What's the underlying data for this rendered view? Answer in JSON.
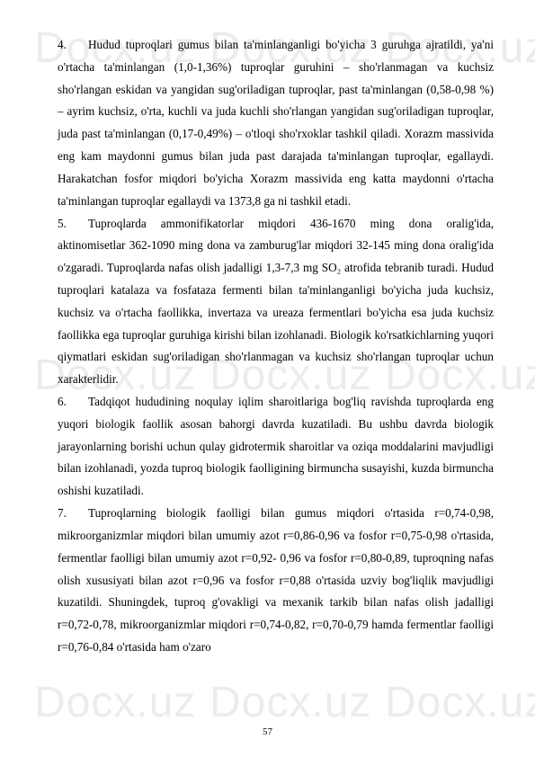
{
  "watermark": "Docx.uz",
  "pageNumber": "57",
  "paragraphs": {
    "p4": "Hudud tuproqlari gumus bilan ta'minlanganligi bo'yicha 3 guruhga ajratildi, ya'ni o'rtacha ta'minlangan (1,0-1,36%) tuproqlar guruhini – sho'rlanmagan va kuchsiz sho'rlangan eskidan va yangidan sug'oriladigan tuproqlar, past ta'minlangan (0,58-0,98 %) – ayrim kuchsiz, o'rta, kuchli va juda kuchli sho'rlangan yangidan sug'oriladigan tuproqlar, juda past ta'minlangan (0,17-0,49%) – o'tloqi sho'rxoklar tashkil qiladi. Xorazm massivida eng kam maydonni gumus bilan juda past darajada ta'minlangan tuproqlar, egallaydi. Harakatchan fosfor miqdori bo'yicha Xorazm massivida eng katta maydonni o'rtacha ta'minlangan tuproqlar egallaydi va 1373,8 ga ni tashkil etadi.",
    "p5": "Tuproqlarda ammonifikatorlar miqdori 436-1670 ming dona oralig'ida, aktinomisetlar 362-1090 ming dona va zamburug'lar miqdori 32-145 ming dona oralig'ida o'zgaradi. Tuproqlarda nafas olish jadalligi 1,3-7,3 mg SO₂ atrofida tebranib turadi. Hudud tuproqlari katalaza va fosfataza fermenti bilan ta'minlanganligi bo'yicha juda kuchsiz, kuchsiz va o'rtacha faollikka, invertaza va ureaza fermentlari bo'yicha esa juda kuchsiz faollikka ega tuproqlar guruhiga kirishi bilan izohlanadi. Biologik ko'rsatkichlarning yuqori qiymatlari eskidan sug'oriladigan sho'rlanmagan va kuchsiz sho'rlangan tuproqlar uchun xarakterlidir.",
    "p6": "Tadqiqot hududining noqulay iqlim sharoitlariga bog'liq ravishda tuproqlarda eng yuqori biologik faollik asosan bahorgi davrda kuzatiladi. Bu ushbu davrda biologik jarayonlarning borishi uchun qulay gidrotermik sharoitlar va oziqa moddalarini mavjudligi bilan izohlanadi, yozda tuproq biologik faolligining birmuncha susayishi, kuzda birmuncha oshishi kuzatiladi.",
    "p7": "Tuproqlarning biologik faolligi bilan gumus miqdori o'rtasida r=0,74-0,98, mikroorganizmlar miqdori bilan umumiy azot r=0,86-0,96 va fosfor r=0,75-0,98 o'rtasida, fermentlar faolligi bilan umumiy azot r=0,92- 0,96 va fosfor r=0,80-0,89, tuproqning nafas olish xususiyati bilan azot r=0,96 va fosfor r=0,88 o'rtasida uzviy bog'liqlik mavjudligi kuzatildi. Shuningdek, tuproq g'ovakligi va mexanik tarkib bilan nafas olish jadalligi r=0,72-0,78, mikroorganizmlar miqdori r=0,74-0,82, r=0,70-0,79 hamda fermentlar faolligi r=0,76-0,84 o'rtasida ham o'zaro"
  },
  "numbers": {
    "n4": "4.",
    "n5": "5.",
    "n6": "6.",
    "n7": "7."
  }
}
